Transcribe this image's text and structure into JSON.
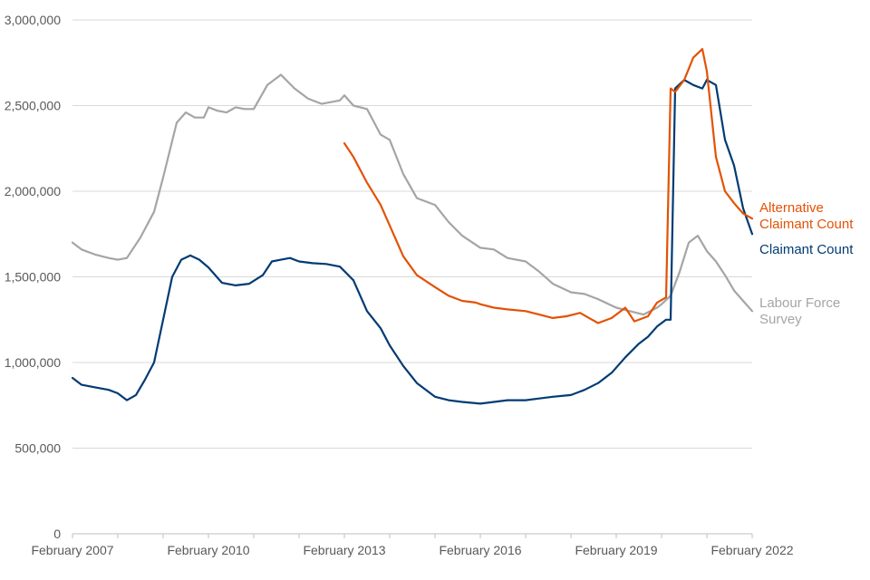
{
  "chart_data": {
    "type": "line",
    "title": "",
    "xlabel": "",
    "ylabel": "",
    "x_tick_labels": [
      "February 2007",
      "February 2010",
      "February 2013",
      "February 2016",
      "February 2019",
      "February 2022"
    ],
    "x_ticks": [
      2007.0,
      2010.0,
      2013.0,
      2016.0,
      2019.0,
      2022.0
    ],
    "y_tick_labels": [
      "0",
      "500,000",
      "1,000,000",
      "1,500,000",
      "2,000,000",
      "2,500,000",
      "3,000,000"
    ],
    "y_ticks": [
      0,
      500000,
      1000000,
      1500000,
      2000000,
      2500000,
      3000000
    ],
    "ylim": [
      0,
      3000000
    ],
    "xlim": [
      2007.0,
      2022.0
    ],
    "grid": "horizontal",
    "legend": "labels at right end of lines",
    "series": [
      {
        "name": "Labour Force Survey",
        "label_lines": [
          "Labour Force",
          "Survey"
        ],
        "color": "#a5a5a5",
        "x": [
          2007.0,
          2007.2,
          2007.5,
          2007.8,
          2008.0,
          2008.2,
          2008.5,
          2008.8,
          2009.0,
          2009.3,
          2009.5,
          2009.7,
          2009.9,
          2010.0,
          2010.2,
          2010.4,
          2010.6,
          2010.8,
          2011.0,
          2011.3,
          2011.6,
          2011.9,
          2012.2,
          2012.5,
          2012.9,
          2013.0,
          2013.2,
          2013.5,
          2013.8,
          2014.0,
          2014.3,
          2014.6,
          2015.0,
          2015.3,
          2015.6,
          2016.0,
          2016.3,
          2016.6,
          2017.0,
          2017.3,
          2017.6,
          2018.0,
          2018.3,
          2018.6,
          2019.0,
          2019.3,
          2019.6,
          2019.9,
          2020.0,
          2020.2,
          2020.4,
          2020.6,
          2020.8,
          2021.0,
          2021.2,
          2021.4,
          2021.6,
          2021.8,
          2022.0
        ],
        "values": [
          1700000,
          1660000,
          1630000,
          1610000,
          1600000,
          1610000,
          1730000,
          1880000,
          2080000,
          2400000,
          2460000,
          2430000,
          2430000,
          2490000,
          2470000,
          2460000,
          2490000,
          2480000,
          2480000,
          2620000,
          2680000,
          2600000,
          2540000,
          2510000,
          2530000,
          2560000,
          2500000,
          2480000,
          2330000,
          2300000,
          2100000,
          1960000,
          1920000,
          1820000,
          1740000,
          1670000,
          1660000,
          1610000,
          1590000,
          1530000,
          1460000,
          1410000,
          1400000,
          1370000,
          1320000,
          1300000,
          1280000,
          1320000,
          1340000,
          1390000,
          1530000,
          1700000,
          1740000,
          1650000,
          1590000,
          1510000,
          1420000,
          1360000,
          1300000
        ]
      },
      {
        "name": "Claimant Count",
        "label_lines": [
          "Claimant Count"
        ],
        "color": "#003b73",
        "x": [
          2007.0,
          2007.2,
          2007.5,
          2007.8,
          2008.0,
          2008.2,
          2008.4,
          2008.6,
          2008.8,
          2009.0,
          2009.2,
          2009.4,
          2009.6,
          2009.8,
          2010.0,
          2010.3,
          2010.6,
          2010.9,
          2011.2,
          2011.4,
          2011.6,
          2011.8,
          2012.0,
          2012.3,
          2012.6,
          2012.9,
          2013.2,
          2013.5,
          2013.8,
          2014.0,
          2014.3,
          2014.6,
          2015.0,
          2015.3,
          2015.6,
          2016.0,
          2016.3,
          2016.6,
          2017.0,
          2017.3,
          2017.6,
          2018.0,
          2018.3,
          2018.6,
          2018.9,
          2019.2,
          2019.5,
          2019.7,
          2019.9,
          2020.1,
          2020.2,
          2020.3,
          2020.5,
          2020.7,
          2020.9,
          2021.0,
          2021.2,
          2021.4,
          2021.6,
          2021.8,
          2022.0
        ],
        "values": [
          910000,
          870000,
          855000,
          840000,
          820000,
          780000,
          810000,
          900000,
          1000000,
          1250000,
          1500000,
          1600000,
          1625000,
          1600000,
          1555000,
          1465000,
          1450000,
          1460000,
          1510000,
          1590000,
          1600000,
          1610000,
          1590000,
          1580000,
          1575000,
          1560000,
          1480000,
          1300000,
          1200000,
          1100000,
          980000,
          880000,
          800000,
          780000,
          770000,
          760000,
          770000,
          780000,
          780000,
          790000,
          800000,
          810000,
          840000,
          880000,
          940000,
          1030000,
          1110000,
          1150000,
          1210000,
          1250000,
          1250000,
          2600000,
          2650000,
          2620000,
          2600000,
          2650000,
          2620000,
          2300000,
          2150000,
          1900000,
          1750000
        ]
      },
      {
        "name": "Alternative Claimant Count",
        "label_lines": [
          "Alternative",
          "Claimant Count"
        ],
        "color": "#e35205",
        "x": [
          2013.0,
          2013.2,
          2013.5,
          2013.8,
          2014.0,
          2014.3,
          2014.6,
          2015.0,
          2015.3,
          2015.6,
          2015.9,
          2016.0,
          2016.3,
          2016.6,
          2017.0,
          2017.3,
          2017.6,
          2017.9,
          2018.2,
          2018.4,
          2018.6,
          2018.9,
          2019.2,
          2019.4,
          2019.7,
          2019.9,
          2020.1,
          2020.2,
          2020.3,
          2020.5,
          2020.7,
          2020.9,
          2021.0,
          2021.2,
          2021.4,
          2021.6,
          2021.8,
          2022.0
        ],
        "values": [
          2280000,
          2200000,
          2050000,
          1920000,
          1800000,
          1620000,
          1510000,
          1440000,
          1390000,
          1360000,
          1350000,
          1340000,
          1320000,
          1310000,
          1300000,
          1280000,
          1260000,
          1270000,
          1290000,
          1260000,
          1230000,
          1260000,
          1320000,
          1240000,
          1270000,
          1350000,
          1380000,
          2600000,
          2580000,
          2650000,
          2780000,
          2830000,
          2700000,
          2200000,
          2000000,
          1930000,
          1870000,
          1840000
        ]
      }
    ]
  }
}
